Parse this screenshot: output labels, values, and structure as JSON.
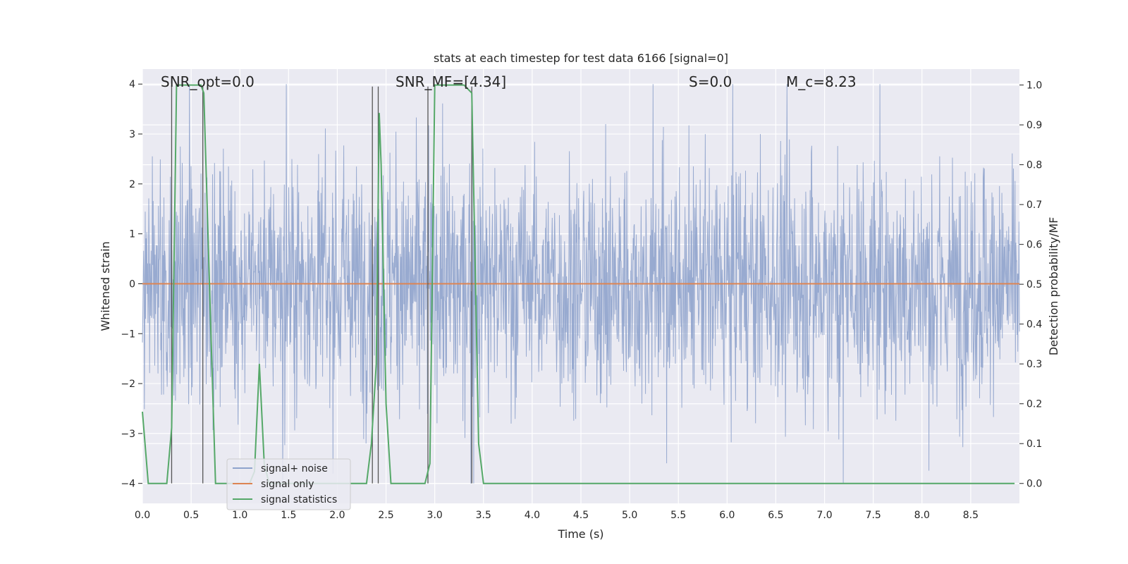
{
  "colors": {
    "plot_background": "#eaeaf2",
    "grid": "#ffffff",
    "signal_noise": "#8fa3cc",
    "signal_only": "#dd8452",
    "signal_statistics": "#55a868",
    "window_markers": "#555555"
  },
  "chart_data": {
    "type": "line",
    "title": "stats at each timestep for test data 6166 [signal=0]",
    "xlabel": "Time (s)",
    "ylabel": "Whitened strain",
    "ylabel_right": "Detection probability/MF",
    "xlim": [
      0,
      9.0
    ],
    "ylim": [
      -4.4,
      4.3
    ],
    "ylim_right": [
      -0.05,
      1.04
    ],
    "xticks": [
      "0.0",
      "0.5",
      "1.0",
      "1.5",
      "2.0",
      "2.5",
      "3.0",
      "3.5",
      "4.0",
      "4.5",
      "5.0",
      "5.5",
      "6.0",
      "6.5",
      "7.0",
      "7.5",
      "8.0",
      "8.5"
    ],
    "yticks": [
      "4",
      "3",
      "2",
      "1",
      "0",
      "−1",
      "−2",
      "−3",
      "−4"
    ],
    "yticks_right": [
      "1.0",
      "0.9",
      "0.8",
      "0.7",
      "0.6",
      "0.5",
      "0.4",
      "0.3",
      "0.2",
      "0.1",
      "0.0"
    ],
    "grid": true,
    "legend_position": "lower-left",
    "annotations": {
      "snr_opt": "SNR_opt=0.0",
      "snr_mf": "SNR_MF=[4.34]",
      "s": "S=0.0",
      "mc": "M_c=8.23"
    },
    "series": [
      {
        "name": "signal+ noise",
        "style": "noise",
        "amplitude_typical": 1.6,
        "amplitude_peak": 4.0,
        "x_range": [
          0,
          9.0
        ]
      },
      {
        "name": "signal only",
        "x": [
          0,
          9.0
        ],
        "y": [
          0,
          0
        ]
      },
      {
        "name": "signal statistics",
        "axis": "right",
        "x": [
          0.0,
          0.06,
          0.15,
          0.25,
          0.3,
          0.35,
          0.4,
          0.5,
          0.6,
          0.63,
          0.7,
          0.75,
          0.8,
          0.9,
          1.0,
          1.1,
          1.15,
          1.2,
          1.25,
          1.3,
          1.4,
          1.5,
          1.6,
          1.7,
          1.8,
          1.9,
          2.0,
          2.1,
          2.2,
          2.3,
          2.35,
          2.4,
          2.43,
          2.45,
          2.5,
          2.55,
          2.6,
          2.7,
          2.8,
          2.9,
          2.95,
          3.0,
          3.1,
          3.2,
          3.3,
          3.38,
          3.45,
          3.5,
          3.6,
          4.0,
          5.0,
          6.0,
          7.0,
          8.0,
          8.95
        ],
        "y": [
          0.18,
          0.0,
          0.0,
          0.0,
          0.14,
          1.0,
          1.0,
          1.0,
          1.0,
          0.98,
          0.4,
          0.0,
          0.0,
          0.0,
          0.0,
          0.0,
          0.03,
          0.3,
          0.05,
          0.0,
          0.0,
          0.0,
          0.0,
          0.0,
          0.0,
          0.0,
          0.0,
          0.0,
          0.0,
          0.0,
          0.1,
          0.3,
          0.93,
          0.8,
          0.2,
          0.0,
          0.0,
          0.0,
          0.0,
          0.0,
          0.05,
          1.0,
          1.0,
          1.0,
          1.0,
          0.98,
          0.1,
          0.0,
          0.0,
          0.0,
          0.0,
          0.0,
          0.0,
          0.0,
          0.0
        ]
      }
    ],
    "window_markers_x": [
      0.3,
      0.62,
      2.36,
      2.42,
      2.93,
      3.38
    ]
  }
}
